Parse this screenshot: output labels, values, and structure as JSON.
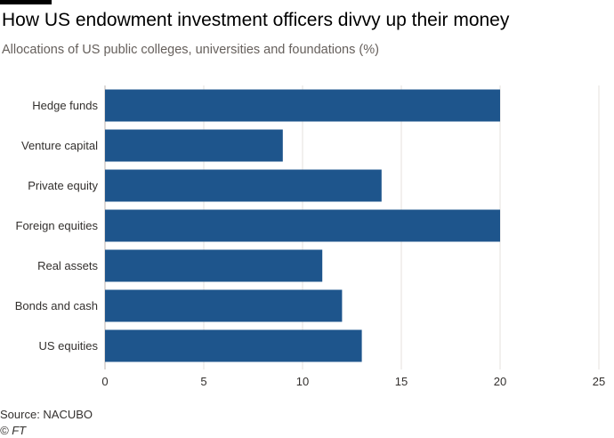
{
  "header": {
    "title": "How US endowment investment officers divvy up their money",
    "subtitle": "Allocations of US public colleges, universities and foundations (%)"
  },
  "footer": {
    "source": "Source: NACUBO",
    "credit": "© FT"
  },
  "colors": {
    "bar": "#1e558c",
    "grid": "#e6e2dd",
    "label": "#33302e"
  },
  "chart_data": {
    "type": "bar",
    "orientation": "horizontal",
    "title": "How US endowment investment officers divvy up their money",
    "subtitle": "Allocations of US public colleges, universities and foundations (%)",
    "categories": [
      "Hedge funds",
      "Venture capital",
      "Private equity",
      "Foreign equities",
      "Real assets",
      "Bonds and cash",
      "US equities"
    ],
    "values": [
      20,
      9,
      14,
      20,
      11,
      12,
      13
    ],
    "xlim": [
      0,
      25
    ],
    "xticks": [
      0,
      5,
      10,
      15,
      20,
      25
    ],
    "grid": true,
    "legend": "none"
  }
}
